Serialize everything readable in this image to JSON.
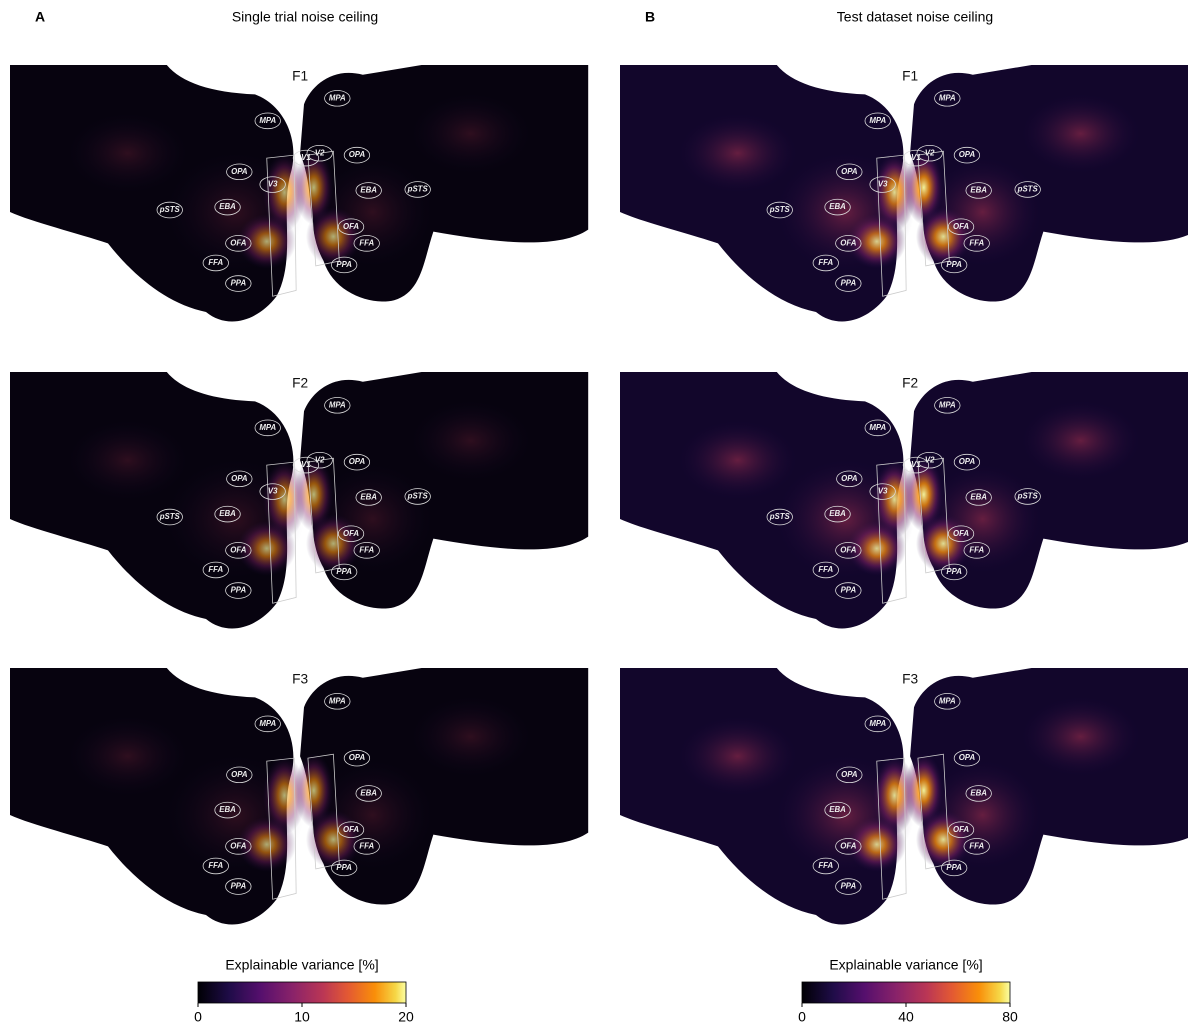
{
  "panels": [
    {
      "letter": "A",
      "title": "Single trial noise ceiling",
      "maps": [
        {
          "label": "F1",
          "rois": [
            "MPA",
            "MPA",
            "OPA",
            "OPA",
            "EBA",
            "EBA",
            "OFA",
            "OFA",
            "FFA",
            "FFA",
            "PPA",
            "PPA",
            "pSTS",
            "pSTS",
            "V1",
            "V2",
            "V3"
          ]
        },
        {
          "label": "F2",
          "rois": [
            "MPA",
            "MPA",
            "OPA",
            "OPA",
            "EBA",
            "EBA",
            "OFA",
            "OFA",
            "FFA",
            "FFA",
            "PPA",
            "PPA",
            "pSTS",
            "pSTS",
            "V1",
            "V2",
            "V3"
          ]
        },
        {
          "label": "F3",
          "rois": [
            "MPA",
            "MPA",
            "OPA",
            "OPA",
            "EBA",
            "EBA",
            "OFA",
            "OFA",
            "FFA",
            "FFA",
            "PPA",
            "PPA"
          ]
        }
      ],
      "colorbar": {
        "label": "Explainable variance [%]",
        "lim": [
          0,
          20
        ],
        "ticks": [
          0,
          10,
          20
        ]
      }
    },
    {
      "letter": "B",
      "title": "Test dataset noise ceiling",
      "maps": [
        {
          "label": "F1",
          "rois": [
            "MPA",
            "MPA",
            "OPA",
            "OPA",
            "EBA",
            "EBA",
            "OFA",
            "OFA",
            "FFA",
            "FFA",
            "PPA",
            "PPA",
            "pSTS",
            "pSTS",
            "V1",
            "V2",
            "V3"
          ]
        },
        {
          "label": "F2",
          "rois": [
            "MPA",
            "MPA",
            "OPA",
            "OPA",
            "EBA",
            "EBA",
            "OFA",
            "OFA",
            "FFA",
            "FFA",
            "PPA",
            "PPA",
            "pSTS",
            "pSTS",
            "V1",
            "V2",
            "V3"
          ]
        },
        {
          "label": "F3",
          "rois": [
            "MPA",
            "MPA",
            "OPA",
            "OPA",
            "EBA",
            "EBA",
            "OFA",
            "OFA",
            "FFA",
            "FFA",
            "PPA",
            "PPA"
          ]
        }
      ],
      "colorbar": {
        "label": "Explainable variance [%]",
        "lim": [
          0,
          80
        ],
        "ticks": [
          0,
          40,
          80
        ]
      }
    }
  ]
}
